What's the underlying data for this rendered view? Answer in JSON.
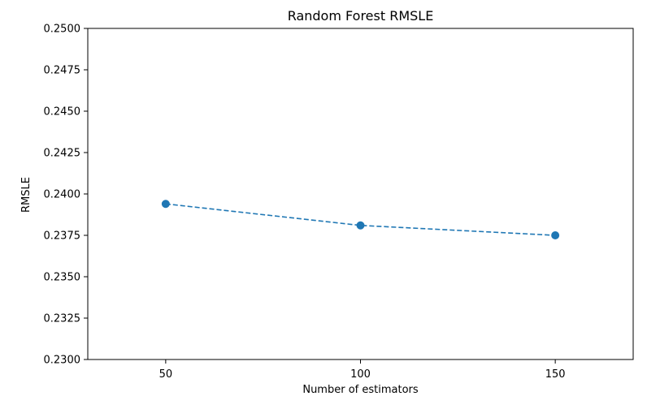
{
  "chart_data": {
    "type": "line",
    "title": "Random Forest RMSLE",
    "xlabel": "Number of estimators",
    "ylabel": "RMSLE",
    "x": [
      50,
      100,
      150
    ],
    "series": [
      {
        "values": [
          0.2394,
          0.2381,
          0.2375
        ],
        "color": "#1f77b4",
        "line_style": "dashed",
        "marker": "circle"
      }
    ],
    "xlim": [
      30,
      170
    ],
    "ylim": [
      0.23,
      0.25
    ],
    "xticks": [
      50,
      100,
      150
    ],
    "xtick_labels": [
      "50",
      "100",
      "150"
    ],
    "yticks": [
      0.23,
      0.2325,
      0.235,
      0.2375,
      0.24,
      0.2425,
      0.245,
      0.2475,
      0.25
    ],
    "ytick_labels": [
      "0.2300",
      "0.2325",
      "0.2350",
      "0.2375",
      "0.2400",
      "0.2425",
      "0.2450",
      "0.2475",
      "0.2500"
    ],
    "grid": false,
    "legend": "none"
  }
}
